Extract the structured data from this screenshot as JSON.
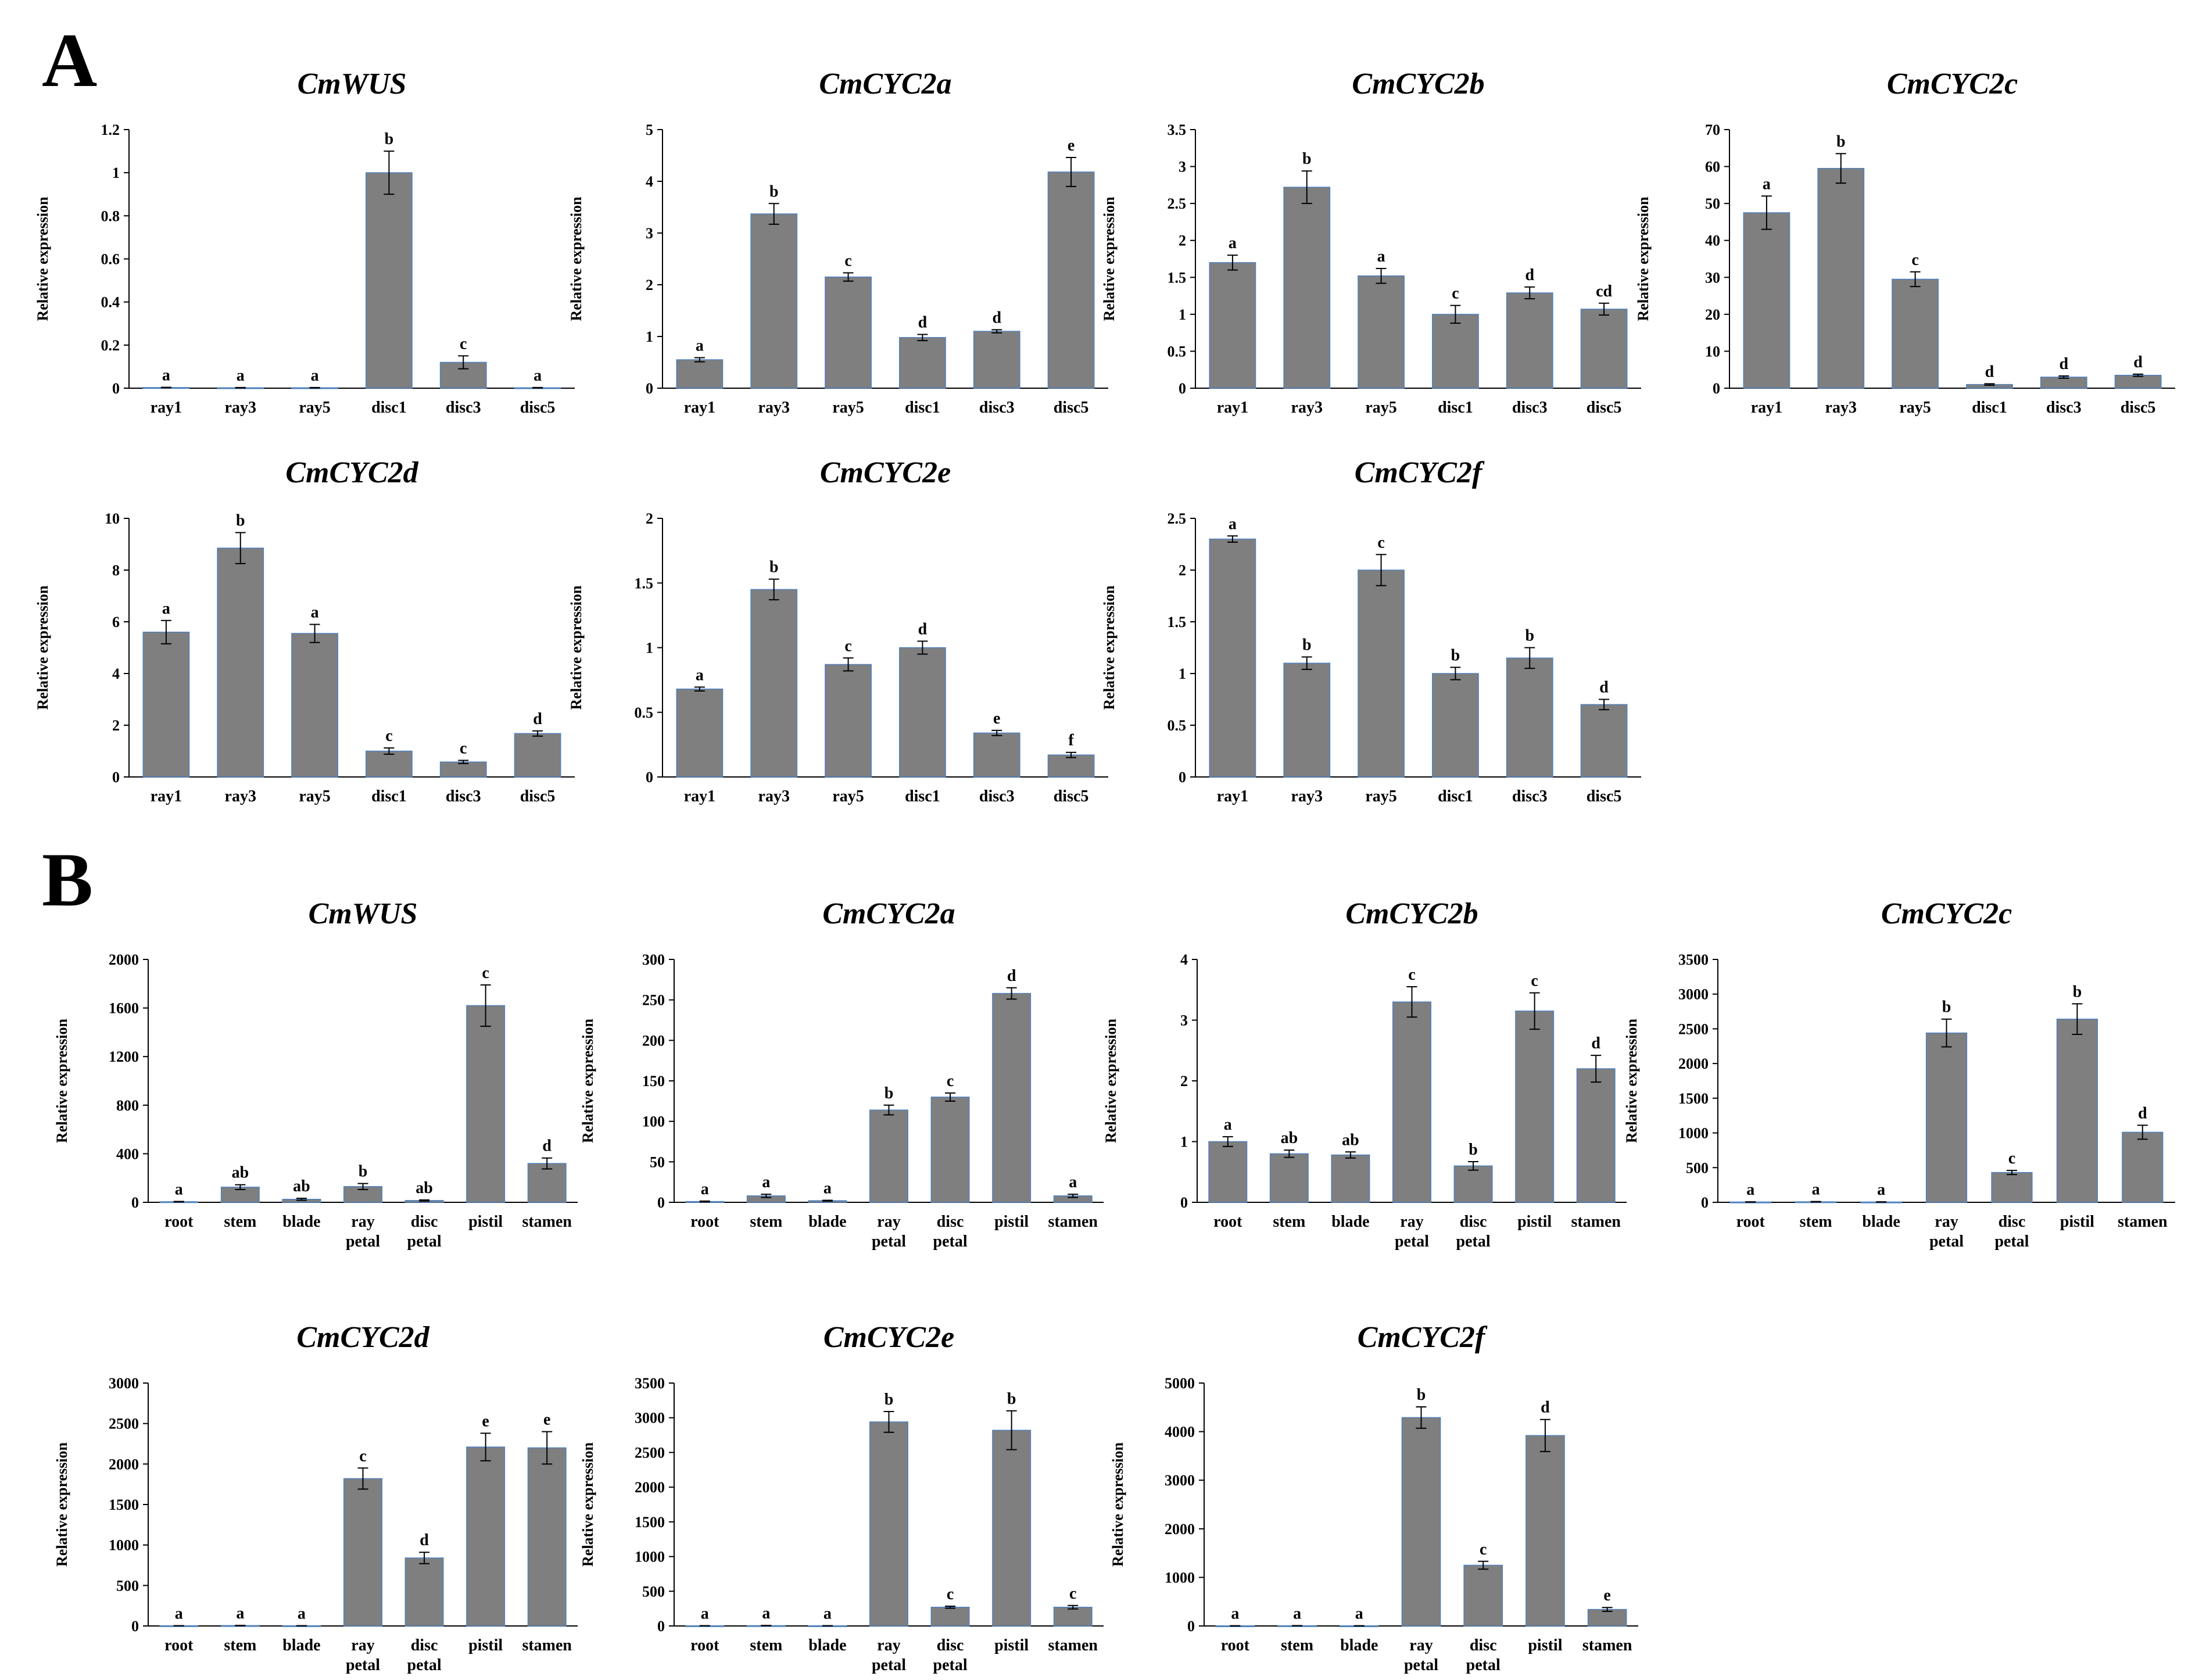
{
  "panels": [
    {
      "letter": "A"
    },
    {
      "letter": "B"
    }
  ],
  "colors": {
    "bar_fill": "#7f7f7f",
    "bar_edge": "#4f81bd",
    "axis": "#000000",
    "text": "#000000",
    "background": "#ffffff"
  },
  "chart_data": [
    {
      "type": "bar",
      "panel": "A",
      "title": "CmWUS",
      "ylabel": "Relative expression",
      "categories": [
        "ray1",
        "ray3",
        "ray5",
        "disc1",
        "disc3",
        "disc5"
      ],
      "values": [
        0.003,
        0.002,
        0.002,
        1.0,
        0.12,
        0.002
      ],
      "errors": [
        0.001,
        0.001,
        0.001,
        0.1,
        0.03,
        0.001
      ],
      "letters": [
        "a",
        "a",
        "a",
        "b",
        "c",
        "a"
      ],
      "ylim": [
        0,
        1.2
      ],
      "yticks": [
        "0",
        "0.2",
        "0.4",
        "0.6",
        "0.8",
        "1",
        "1.2"
      ]
    },
    {
      "type": "bar",
      "panel": "A",
      "title": "CmCYC2a",
      "ylabel": "Relative expression",
      "categories": [
        "ray1",
        "ray3",
        "ray5",
        "disc1",
        "disc3",
        "disc5"
      ],
      "values": [
        0.55,
        3.37,
        2.15,
        0.98,
        1.1,
        4.18
      ],
      "errors": [
        0.04,
        0.2,
        0.08,
        0.06,
        0.03,
        0.28
      ],
      "letters": [
        "a",
        "b",
        "c",
        "d",
        "d",
        "e"
      ],
      "ylim": [
        0,
        5
      ],
      "yticks": [
        "0",
        "1",
        "2",
        "3",
        "4",
        "5"
      ]
    },
    {
      "type": "bar",
      "panel": "A",
      "title": "CmCYC2b",
      "ylabel": "Relative expression",
      "categories": [
        "ray1",
        "ray3",
        "ray5",
        "disc1",
        "disc3",
        "disc5"
      ],
      "values": [
        1.7,
        2.72,
        1.52,
        1.0,
        1.29,
        1.07
      ],
      "errors": [
        0.1,
        0.22,
        0.1,
        0.12,
        0.08,
        0.08
      ],
      "letters": [
        "a",
        "b",
        "a",
        "c",
        "d",
        "cd"
      ],
      "ylim": [
        0,
        3.5
      ],
      "yticks": [
        "0",
        "0.5",
        "1",
        "1.5",
        "2",
        "2.5",
        "3",
        "3.5"
      ]
    },
    {
      "type": "bar",
      "panel": "A",
      "title": "CmCYC2c",
      "ylabel": "Relative expression",
      "categories": [
        "ray1",
        "ray3",
        "ray5",
        "disc1",
        "disc3",
        "disc5"
      ],
      "values": [
        47.5,
        59.5,
        29.5,
        1.0,
        3.0,
        3.5
      ],
      "errors": [
        4.5,
        4.0,
        2.0,
        0.2,
        0.3,
        0.3
      ],
      "letters": [
        "a",
        "b",
        "c",
        "d",
        "d",
        "d"
      ],
      "ylim": [
        0,
        70
      ],
      "yticks": [
        "0",
        "10",
        "20",
        "30",
        "40",
        "50",
        "60",
        "70"
      ]
    },
    {
      "type": "bar",
      "panel": "A",
      "title": "CmCYC2d",
      "ylabel": "Relative expression",
      "categories": [
        "ray1",
        "ray3",
        "ray5",
        "disc1",
        "disc3",
        "disc5"
      ],
      "values": [
        5.6,
        8.85,
        5.55,
        1.0,
        0.58,
        1.68
      ],
      "errors": [
        0.45,
        0.6,
        0.35,
        0.12,
        0.06,
        0.1
      ],
      "letters": [
        "a",
        "b",
        "a",
        "c",
        "c",
        "d"
      ],
      "ylim": [
        0,
        10
      ],
      "yticks": [
        "0",
        "2",
        "4",
        "6",
        "8",
        "10"
      ]
    },
    {
      "type": "bar",
      "panel": "A",
      "title": "CmCYC2e",
      "ylabel": "Relative expression",
      "categories": [
        "ray1",
        "ray3",
        "ray5",
        "disc1",
        "disc3",
        "disc5"
      ],
      "values": [
        0.68,
        1.45,
        0.87,
        1.0,
        0.34,
        0.17
      ],
      "errors": [
        0.015,
        0.08,
        0.05,
        0.05,
        0.02,
        0.02
      ],
      "letters": [
        "a",
        "b",
        "c",
        "d",
        "e",
        "f"
      ],
      "ylim": [
        0,
        2
      ],
      "yticks": [
        "0",
        "0.5",
        "1",
        "1.5",
        "2"
      ]
    },
    {
      "type": "bar",
      "panel": "A",
      "title": "CmCYC2f",
      "ylabel": "Relative expression",
      "categories": [
        "ray1",
        "ray3",
        "ray5",
        "disc1",
        "disc3",
        "disc5"
      ],
      "values": [
        2.3,
        1.1,
        2.0,
        1.0,
        1.15,
        0.7
      ],
      "errors": [
        0.03,
        0.06,
        0.15,
        0.06,
        0.1,
        0.05
      ],
      "letters": [
        "a",
        "b",
        "c",
        "b",
        "b",
        "d"
      ],
      "ylim": [
        0,
        2.5
      ],
      "yticks": [
        "0",
        "0.5",
        "1",
        "1.5",
        "2",
        "2.5"
      ]
    },
    {
      "type": "bar",
      "panel": "B",
      "title": "CmWUS",
      "ylabel": "Relative expression",
      "categories": [
        "root",
        "stem",
        "blade",
        "ray\npetal",
        "disc\npetal",
        "pistil",
        "stamen"
      ],
      "values": [
        5,
        125,
        25,
        130,
        15,
        1620,
        320
      ],
      "errors": [
        2,
        20,
        8,
        25,
        5,
        170,
        45
      ],
      "letters": [
        "a",
        "ab",
        "ab",
        "b",
        "ab",
        "c",
        "d"
      ],
      "ylim": [
        0,
        2000
      ],
      "yticks": [
        "0",
        "400",
        "800",
        "1200",
        "1600",
        "2000"
      ]
    },
    {
      "type": "bar",
      "panel": "B",
      "title": "CmCYC2a",
      "ylabel": "Relative expression",
      "categories": [
        "root",
        "stem",
        "blade",
        "ray\npetal",
        "disc\npetal",
        "pistil",
        "stamen"
      ],
      "values": [
        1,
        8,
        2,
        114,
        130,
        258,
        8
      ],
      "errors": [
        0.5,
        2,
        0.5,
        6,
        5,
        7,
        2
      ],
      "letters": [
        "a",
        "a",
        "a",
        "b",
        "c",
        "d",
        "a"
      ],
      "ylim": [
        0,
        300
      ],
      "yticks": [
        "0",
        "50",
        "100",
        "150",
        "200",
        "250",
        "300"
      ]
    },
    {
      "type": "bar",
      "panel": "B",
      "title": "CmCYC2b",
      "ylabel": "Relative expression",
      "categories": [
        "root",
        "stem",
        "blade",
        "ray\npetal",
        "disc\npetal",
        "pistil",
        "stamen"
      ],
      "values": [
        1.0,
        0.8,
        0.78,
        3.3,
        0.6,
        3.15,
        2.2
      ],
      "errors": [
        0.08,
        0.06,
        0.05,
        0.25,
        0.07,
        0.3,
        0.22
      ],
      "letters": [
        "a",
        "ab",
        "ab",
        "c",
        "b",
        "c",
        "d"
      ],
      "ylim": [
        0,
        4
      ],
      "yticks": [
        "0",
        "1",
        "2",
        "3",
        "4"
      ]
    },
    {
      "type": "bar",
      "panel": "B",
      "title": "CmCYC2c",
      "ylabel": "Relative expression",
      "categories": [
        "root",
        "stem",
        "blade",
        "ray\npetal",
        "disc\npetal",
        "pistil",
        "stamen"
      ],
      "values": [
        5,
        8,
        5,
        2440,
        430,
        2640,
        1010
      ],
      "errors": [
        2,
        3,
        2,
        200,
        30,
        220,
        100
      ],
      "letters": [
        "a",
        "a",
        "a",
        "b",
        "c",
        "b",
        "d"
      ],
      "ylim": [
        0,
        3500
      ],
      "yticks": [
        "0",
        "500",
        "1000",
        "1500",
        "2000",
        "2500",
        "3000",
        "3500"
      ]
    },
    {
      "type": "bar",
      "panel": "B",
      "title": "CmCYC2d",
      "ylabel": "Relative expression",
      "categories": [
        "root",
        "stem",
        "blade",
        "ray\npetal",
        "disc\npetal",
        "pistil",
        "stamen"
      ],
      "values": [
        3,
        5,
        3,
        1820,
        840,
        2210,
        2200
      ],
      "errors": [
        1,
        2,
        1,
        130,
        70,
        170,
        200
      ],
      "letters": [
        "a",
        "a",
        "a",
        "c",
        "d",
        "e",
        "e"
      ],
      "ylim": [
        0,
        3000
      ],
      "yticks": [
        "0",
        "500",
        "1000",
        "1500",
        "2000",
        "2500",
        "3000"
      ]
    },
    {
      "type": "bar",
      "panel": "B",
      "title": "CmCYC2e",
      "ylabel": "Relative expression",
      "categories": [
        "root",
        "stem",
        "blade",
        "ray\npetal",
        "disc\npetal",
        "pistil",
        "stamen"
      ],
      "values": [
        3,
        5,
        3,
        2940,
        270,
        2820,
        270
      ],
      "errors": [
        1,
        2,
        1,
        150,
        15,
        280,
        25
      ],
      "letters": [
        "a",
        "a",
        "a",
        "b",
        "c",
        "b",
        "c"
      ],
      "ylim": [
        0,
        3500
      ],
      "yticks": [
        "0",
        "500",
        "1000",
        "1500",
        "2000",
        "2500",
        "3000",
        "3500"
      ]
    },
    {
      "type": "bar",
      "panel": "B",
      "title": "CmCYC2f",
      "ylabel": "Relative expression",
      "categories": [
        "root",
        "stem",
        "blade",
        "ray\npetal",
        "disc\npetal",
        "pistil",
        "stamen"
      ],
      "values": [
        3,
        5,
        3,
        4290,
        1250,
        3920,
        340
      ],
      "errors": [
        1,
        2,
        1,
        220,
        80,
        330,
        40
      ],
      "letters": [
        "a",
        "a",
        "a",
        "b",
        "c",
        "d",
        "e"
      ],
      "ylim": [
        0,
        5000
      ],
      "yticks": [
        "0",
        "1000",
        "2000",
        "3000",
        "4000",
        "5000"
      ]
    }
  ]
}
